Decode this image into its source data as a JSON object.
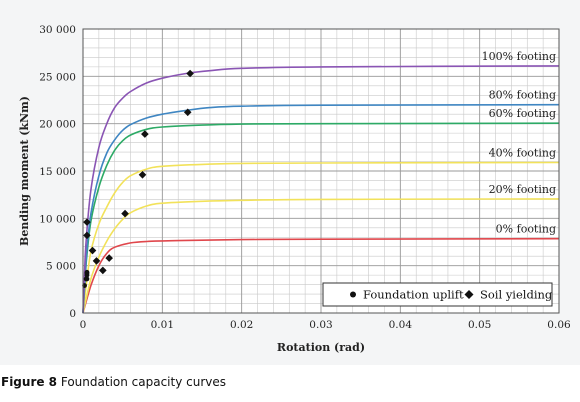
{
  "caption": {
    "label": "Figure 8",
    "text": "Foundation capacity curves"
  },
  "chart_data": {
    "type": "line",
    "xlabel": "Rotation (rad)",
    "ylabel": "Bending moment (kNm)",
    "xlim": [
      0,
      0.06
    ],
    "ylim": [
      0,
      30000
    ],
    "x_ticks": [
      "0",
      "0.01",
      "0.02",
      "0.03",
      "0.04",
      "0.05",
      "0.06"
    ],
    "y_ticks": [
      "0",
      "5 000",
      "10 000",
      "15 000",
      "20 000",
      "25 000",
      "30 000"
    ],
    "grid": true,
    "legend_position": "bottom-right",
    "series": [
      {
        "name": "0% footing",
        "color": "#e0474c",
        "x": [
          0,
          0.001,
          0.002,
          0.003,
          0.004,
          0.006,
          0.008,
          0.012,
          0.02,
          0.03,
          0.06
        ],
        "y": [
          0,
          2900,
          5000,
          6300,
          6950,
          7400,
          7550,
          7650,
          7750,
          7800,
          7850
        ]
      },
      {
        "name": "20% footing",
        "color": "#f2e25a",
        "x": [
          0,
          0.001,
          0.002,
          0.003,
          0.004,
          0.005,
          0.006,
          0.008,
          0.01,
          0.015,
          0.02,
          0.03,
          0.06
        ],
        "y": [
          0,
          3600,
          5900,
          7600,
          8900,
          9900,
          10600,
          11300,
          11600,
          11800,
          11900,
          12000,
          12050
        ]
      },
      {
        "name": "40% footing",
        "color": "#f2e25a",
        "x": [
          0,
          0.0005,
          0.001,
          0.002,
          0.003,
          0.004,
          0.005,
          0.006,
          0.008,
          0.01,
          0.015,
          0.02,
          0.03,
          0.06
        ],
        "y": [
          0,
          3600,
          6500,
          9400,
          11200,
          12700,
          13800,
          14500,
          15200,
          15500,
          15700,
          15800,
          15850,
          15900
        ]
      },
      {
        "name": "60% footing",
        "color": "#2daa66",
        "x": [
          0,
          0.0003,
          0.0005,
          0.001,
          0.002,
          0.003,
          0.004,
          0.005,
          0.006,
          0.008,
          0.01,
          0.015,
          0.02,
          0.03,
          0.06
        ],
        "y": [
          0,
          4000,
          6200,
          9700,
          13300,
          15600,
          17200,
          18200,
          18800,
          19400,
          19650,
          19850,
          19950,
          20000,
          20050
        ]
      },
      {
        "name": "80% footing",
        "color": "#3f86c2",
        "x": [
          0,
          0.0003,
          0.0005,
          0.001,
          0.002,
          0.003,
          0.004,
          0.005,
          0.006,
          0.008,
          0.01,
          0.013,
          0.016,
          0.02,
          0.03,
          0.06
        ],
        "y": [
          0,
          4200,
          6800,
          10500,
          14500,
          16900,
          18300,
          19300,
          19900,
          20600,
          21000,
          21400,
          21700,
          21850,
          21950,
          22000
        ]
      },
      {
        "name": "100% footing",
        "color": "#8a55b4",
        "x": [
          0,
          0.0002,
          0.0004,
          0.001,
          0.002,
          0.003,
          0.004,
          0.005,
          0.006,
          0.008,
          0.01,
          0.013,
          0.016,
          0.02,
          0.03,
          0.06
        ],
        "y": [
          0,
          4300,
          7700,
          13000,
          17500,
          20000,
          21700,
          22700,
          23400,
          24300,
          24800,
          25300,
          25600,
          25850,
          26000,
          26100
        ]
      }
    ],
    "markers": {
      "foundation_uplift": {
        "name": "Foundation uplift",
        "symbol": "circle",
        "points": [
          {
            "x": 0.0002,
            "y": 2900
          },
          {
            "x": 0.0004,
            "y": 3600
          },
          {
            "x": 0.0005,
            "y": 3600
          },
          {
            "x": 0.0005,
            "y": 4000
          },
          {
            "x": 0.0005,
            "y": 4200
          },
          {
            "x": 0.0005,
            "y": 4300
          }
        ]
      },
      "soil_yielding": {
        "name": "Soil yielding",
        "symbol": "diamond",
        "points": [
          {
            "x": 0.0025,
            "y": 4500
          },
          {
            "x": 0.0033,
            "y": 5800
          },
          {
            "x": 0.0017,
            "y": 5500
          },
          {
            "x": 0.0012,
            "y": 6600
          },
          {
            "x": 0.0005,
            "y": 8200
          },
          {
            "x": 0.0005,
            "y": 9600
          },
          {
            "x": 0.0053,
            "y": 10500
          },
          {
            "x": 0.0075,
            "y": 14600
          },
          {
            "x": 0.0078,
            "y": 18900
          },
          {
            "x": 0.0132,
            "y": 21200
          },
          {
            "x": 0.0135,
            "y": 25300
          }
        ]
      }
    }
  }
}
